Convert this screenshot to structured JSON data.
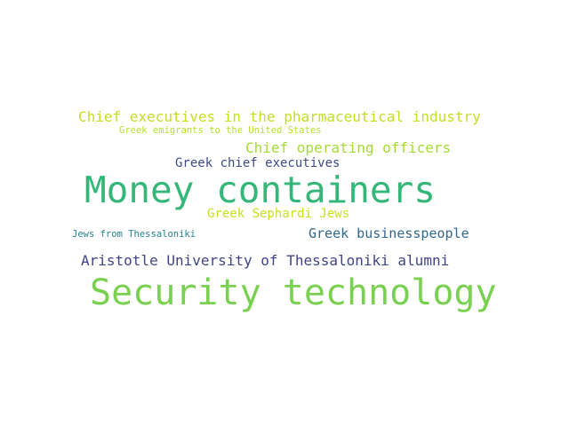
{
  "words": [
    {
      "text": "Chief executives in the pharmaceutical industry",
      "color": "#c2df23"
    },
    {
      "text": "Greek emigrants to the United States",
      "color": "#b5de2b"
    },
    {
      "text": "Chief operating officers",
      "color": "#a5db36"
    },
    {
      "text": "Greek chief executives",
      "color": "#3e4a89"
    },
    {
      "text": "Money containers",
      "color": "#35b779"
    },
    {
      "text": "Greek Sephardi Jews",
      "color": "#c8e020"
    },
    {
      "text": "Jews from Thessaloniki",
      "color": "#26828e"
    },
    {
      "text": "Greek businesspeople",
      "color": "#31688e"
    },
    {
      "text": "Aristotle University of Thessaloniki alumni",
      "color": "#414487"
    },
    {
      "text": "Security technology",
      "color": "#7ad151"
    }
  ]
}
